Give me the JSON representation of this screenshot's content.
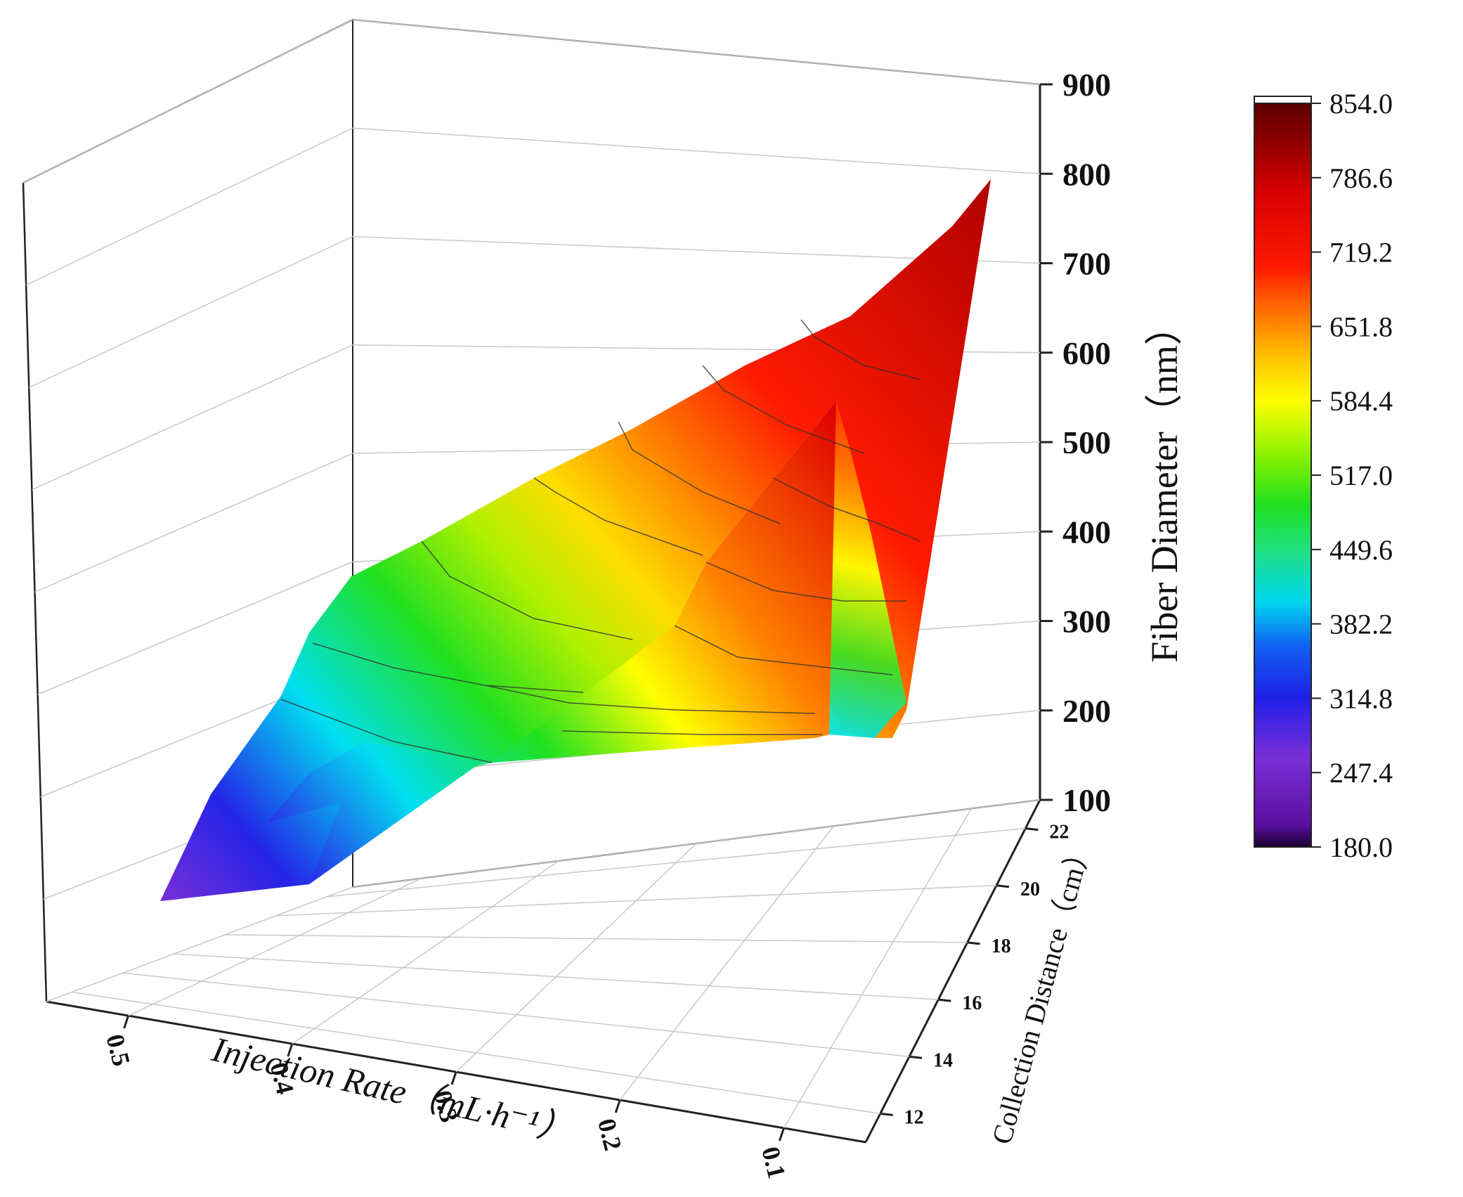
{
  "chart_data": {
    "type": "surface3d",
    "title": "",
    "xlabel": "Injection Rate（mL·h⁻¹）",
    "ylabel": "Collection Distance（cm）",
    "zlabel": "Fiber Diameter（nm）",
    "x_ticks": [
      "0.5",
      "0.4",
      "0.3",
      "0.2",
      "0.1"
    ],
    "y_ticks": [
      "12",
      "14",
      "16",
      "18",
      "20",
      "22"
    ],
    "z_ticks": [
      "100",
      "200",
      "300",
      "400",
      "500",
      "600",
      "700",
      "800",
      "900"
    ],
    "xlim": [
      0.05,
      0.55
    ],
    "ylim": [
      11,
      23
    ],
    "zlim": [
      100,
      900
    ],
    "grid": true,
    "colorbar": {
      "labels": [
        "854.0",
        "786.6",
        "719.2",
        "651.8",
        "584.4",
        "517.0",
        "449.6",
        "382.2",
        "314.8",
        "247.4",
        "180.0"
      ],
      "min": 180.0,
      "max": 854.0,
      "colormap": "rainbow (purple-blue-cyan-green-yellow-orange-red-darkred)",
      "colors": [
        "#4b0082",
        "#7b2fd8",
        "#1e1ee8",
        "#0a70f0",
        "#00e0f0",
        "#1ee01e",
        "#90f000",
        "#ffff00",
        "#ffa500",
        "#ff1a00",
        "#e00000",
        "#6a0000"
      ]
    },
    "surface_profiles": [
      {
        "x": 0.5,
        "y": [
          12,
          14,
          16,
          18,
          20,
          22
        ],
        "z": [
          180,
          260,
          300,
          340,
          380,
          420
        ]
      },
      {
        "x": 0.4,
        "y": [
          12,
          14,
          16,
          18,
          20,
          22
        ],
        "z": [
          230,
          300,
          370,
          420,
          450,
          470
        ]
      },
      {
        "x": 0.3,
        "y": [
          12,
          14,
          16,
          18,
          20,
          22
        ],
        "z": [
          280,
          350,
          420,
          470,
          510,
          540
        ]
      },
      {
        "x": 0.2,
        "y": [
          12,
          14,
          16,
          18,
          20,
          22
        ],
        "z": [
          330,
          420,
          500,
          570,
          620,
          700
        ]
      },
      {
        "x": 0.1,
        "y": [
          12,
          14,
          16,
          18,
          20,
          22
        ],
        "z": [
          700,
          760,
          800,
          830,
          850,
          850
        ]
      }
    ],
    "contour_levels": [
      247.4,
      314.8,
      382.2,
      449.6,
      517.0,
      584.4,
      651.8,
      719.2,
      786.6
    ]
  }
}
